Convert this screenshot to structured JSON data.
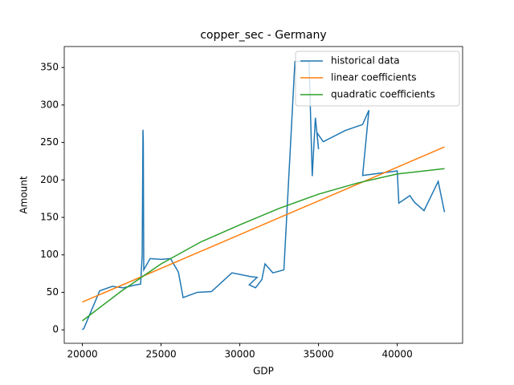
{
  "chart_data": {
    "type": "line",
    "title": "copper_sec - Germany",
    "x_label": "GDP",
    "y_label": "Amount",
    "xlim": [
      18850,
      44150
    ],
    "ylim": [
      -18,
      378
    ],
    "xticks": [
      20000,
      25000,
      30000,
      35000,
      40000
    ],
    "yticks": [
      0,
      50,
      100,
      150,
      200,
      250,
      300,
      350
    ],
    "legend": "upper right",
    "series": [
      {
        "name": "historical data",
        "color": "#1f77b4",
        "x": [
          20000,
          20100,
          21100,
          21900,
          22600,
          23400,
          23700,
          23800,
          23850,
          23870,
          23900,
          24300,
          25000,
          25600,
          26100,
          26400,
          27300,
          28200,
          29500,
          30700,
          31100,
          30600,
          31000,
          31400,
          31600,
          32100,
          32800,
          33500,
          34400,
          34600,
          34800,
          35000,
          34900,
          35300,
          36700,
          37800,
          38200,
          37800,
          40000,
          40100,
          40800,
          41100,
          41700,
          42600,
          43000
        ],
        "values": [
          0,
          2,
          52,
          58,
          56,
          60,
          61,
          100,
          267,
          250,
          80,
          95,
          94,
          95,
          77,
          43,
          50,
          51,
          76,
          71,
          70,
          60,
          56,
          67,
          88,
          76,
          80,
          358,
          358,
          205,
          283,
          241,
          263,
          251,
          266,
          274,
          293,
          206,
          212,
          169,
          179,
          170,
          159,
          198,
          157
        ]
      },
      {
        "name": "linear coefficients",
        "color": "#ff7f0e",
        "x": [
          20000,
          43000
        ],
        "values": [
          37,
          244
        ]
      },
      {
        "name": "quadratic coefficients",
        "color": "#2ca02c",
        "x": [
          20000,
          22500,
          25000,
          27500,
          30000,
          32500,
          35000,
          37500,
          40000,
          43000
        ],
        "values": [
          12,
          52,
          88,
          117,
          140,
          162,
          181,
          196,
          208,
          215
        ]
      }
    ]
  }
}
